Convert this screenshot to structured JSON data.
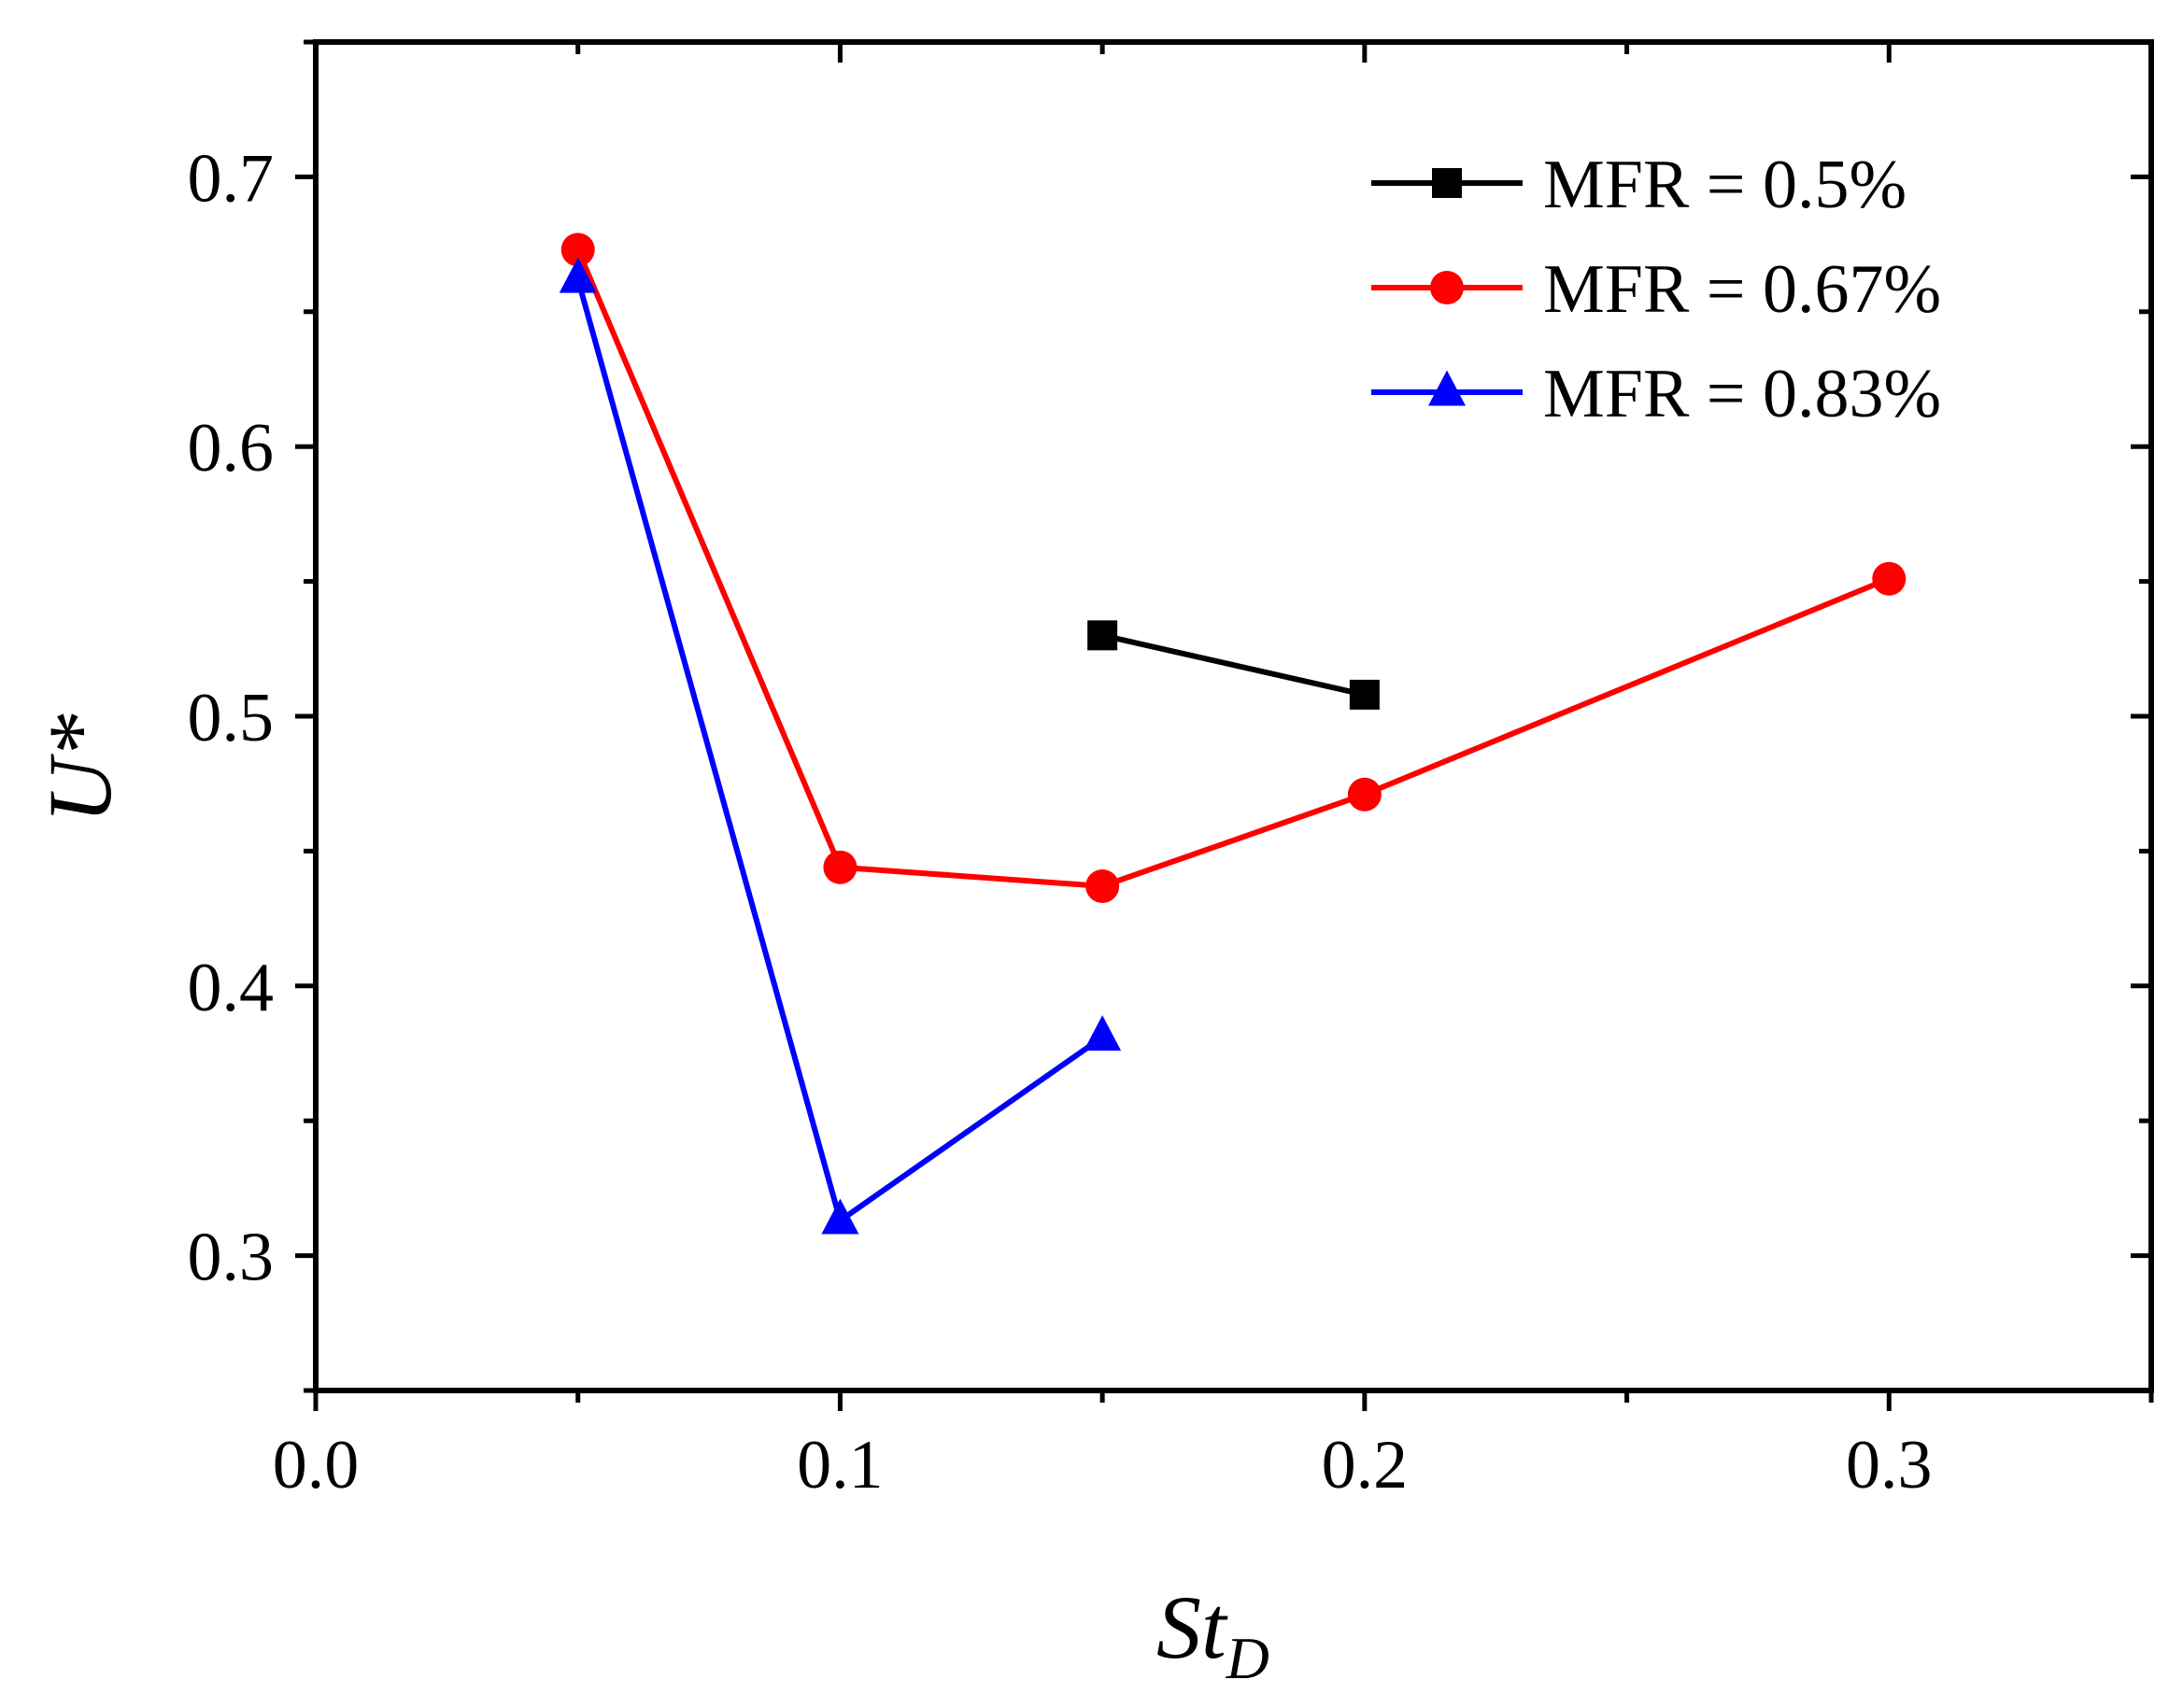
{
  "chart_data": {
    "type": "line",
    "title": "",
    "xlabel": "St",
    "xlabel_subscript": "D",
    "ylabel": "U*",
    "xlim": [
      0.0,
      0.35
    ],
    "ylim": [
      0.25,
      0.75
    ],
    "x_major_ticks": [
      0.0,
      0.1,
      0.2,
      0.3
    ],
    "x_tick_labels": [
      "0.0",
      "0.1",
      "0.2",
      "0.3"
    ],
    "x_minor_ticks": [
      0.05,
      0.15,
      0.25,
      0.35
    ],
    "y_major_ticks": [
      0.3,
      0.4,
      0.5,
      0.6,
      0.7
    ],
    "y_tick_labels": [
      "0.3",
      "0.4",
      "0.5",
      "0.6",
      "0.7"
    ],
    "y_minor_ticks": [
      0.25,
      0.35,
      0.45,
      0.55,
      0.65,
      0.75
    ],
    "grid": false,
    "legend_position": "top-right",
    "series": [
      {
        "name": "MFR = 0.5%",
        "color": "#000000",
        "marker": "square",
        "x": [
          0.15,
          0.2
        ],
        "y": [
          0.53,
          0.508
        ]
      },
      {
        "name": "MFR = 0.67%",
        "color": "#ff0000",
        "marker": "circle",
        "x": [
          0.05,
          0.1,
          0.15,
          0.2,
          0.3
        ],
        "y": [
          0.673,
          0.444,
          0.437,
          0.471,
          0.551
        ]
      },
      {
        "name": "MFR = 0.83%",
        "color": "#0000ff",
        "marker": "triangle",
        "x": [
          0.05,
          0.1,
          0.15
        ],
        "y": [
          0.662,
          0.313,
          0.381
        ]
      }
    ]
  }
}
